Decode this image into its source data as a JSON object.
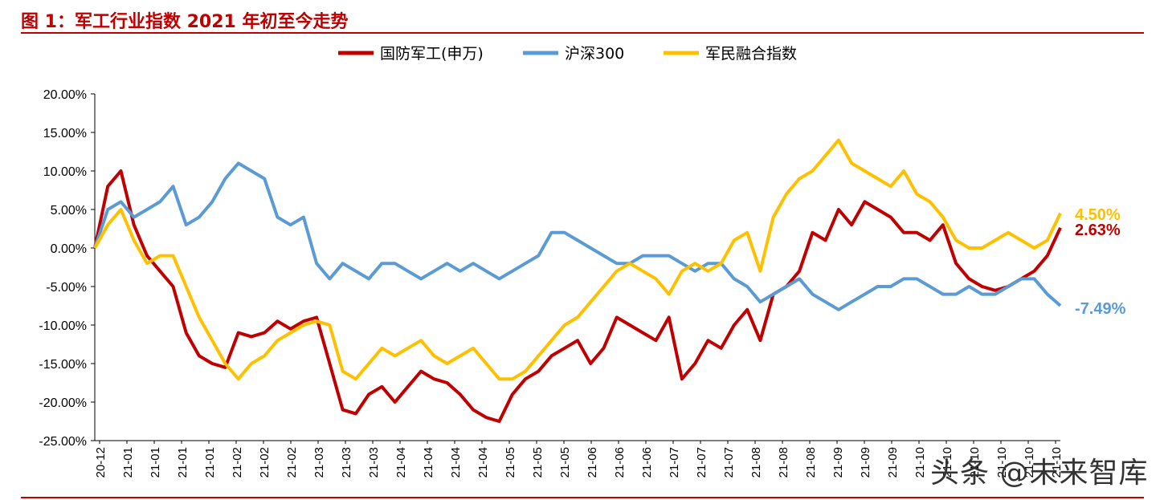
{
  "figure_title": "图 1：军工行业指数 2021 年初至今走势",
  "watermark": "头条 @未来智库",
  "colors": {
    "title": "#c00000",
    "rule": "#c00000",
    "axis": "#000000"
  },
  "chart_data": {
    "type": "line",
    "ylim": [
      -25,
      20
    ],
    "y_ticks": [
      "20.00%",
      "15.00%",
      "10.00%",
      "5.00%",
      "0.00%",
      "-5.00%",
      "-10.00%",
      "-15.00%",
      "-20.00%",
      "-25.00%"
    ],
    "y_tick_values": [
      20,
      15,
      10,
      5,
      0,
      -5,
      -10,
      -15,
      -20,
      -25
    ],
    "x_tick_labels": [
      "20-12",
      "21-01",
      "21-01",
      "21-01",
      "21-01",
      "21-02",
      "21-02",
      "21-02",
      "21-03",
      "21-03",
      "21-03",
      "21-04",
      "21-04",
      "21-04",
      "21-04",
      "21-05",
      "21-05",
      "21-05",
      "21-06",
      "21-06",
      "21-06",
      "21-07",
      "21-07",
      "21-07",
      "21-08",
      "21-08",
      "21-08",
      "21-09",
      "21-09",
      "21-09",
      "21-10",
      "21-10",
      "21-10",
      "21-10",
      "21-10",
      "21-10"
    ],
    "legend_position": "top",
    "series": [
      {
        "name": "国防军工(申万)",
        "color": "#c00000",
        "end_label": "2.63%",
        "values": [
          0,
          8,
          10,
          3,
          -1,
          -3,
          -5,
          -11,
          -14,
          -15,
          -15.5,
          -11,
          -11.5,
          -11,
          -9.5,
          -10.5,
          -9.5,
          -9,
          -15,
          -21,
          -21.5,
          -19,
          -18,
          -20,
          -18,
          -16,
          -17,
          -17.5,
          -19,
          -21,
          -22,
          -22.5,
          -19,
          -17,
          -16,
          -14,
          -13,
          -12,
          -15,
          -13,
          -9,
          -10,
          -11,
          -12,
          -9,
          -17,
          -15,
          -12,
          -13,
          -10,
          -8,
          -12,
          -6,
          -5,
          -3,
          2,
          1,
          5,
          3,
          6,
          5,
          4,
          2,
          2,
          1,
          3,
          -2,
          -4,
          -5,
          -5.5,
          -5,
          -4,
          -3,
          -1,
          2.63
        ],
        "missing_note": ""
      },
      {
        "name": "沪深300",
        "color": "#5b9bd5",
        "end_label": "-7.49%",
        "values": [
          0,
          5,
          6,
          4,
          5,
          6,
          8,
          3,
          4,
          6,
          9,
          11,
          10,
          9,
          4,
          3,
          4,
          -2,
          -4,
          -2,
          -3,
          -4,
          -2,
          -2,
          -3,
          -4,
          -3,
          -2,
          -3,
          -2,
          -3,
          -4,
          -3,
          -2,
          -1,
          2,
          2,
          1,
          0,
          -1,
          -2,
          -2,
          -1,
          -1,
          -1,
          -2,
          -3,
          -2,
          -2,
          -4,
          -5,
          -7,
          -6,
          -5,
          -4,
          -6,
          -7,
          -8,
          -7,
          -6,
          -5,
          -5,
          -4,
          -4,
          -5,
          -6,
          -6,
          -5,
          -6,
          -6,
          -5,
          -4,
          -4,
          -6,
          -7.49
        ]
      },
      {
        "name": "军民融合指数",
        "color": "#ffc000",
        "end_label": "4.50%",
        "values": [
          0,
          3,
          5,
          1,
          -2,
          -1,
          -1,
          -5,
          -9,
          -12,
          -15,
          -17,
          -15,
          -14,
          -12,
          -11,
          -10,
          -9.5,
          -10,
          -16,
          -17,
          -15,
          -13,
          -14,
          -13,
          -12,
          -14,
          -15,
          -14,
          -13,
          -15,
          -17,
          -17,
          -16,
          -14,
          -12,
          -10,
          -9,
          -7,
          -5,
          -3,
          -2,
          -3,
          -4,
          -6,
          -3,
          -2,
          -3,
          -2,
          1,
          2,
          -3,
          4,
          7,
          9,
          10,
          12,
          14,
          11,
          10,
          9,
          8,
          10,
          7,
          6,
          4,
          1,
          0,
          0,
          1,
          2,
          1,
          0,
          1,
          4.5
        ]
      }
    ]
  }
}
